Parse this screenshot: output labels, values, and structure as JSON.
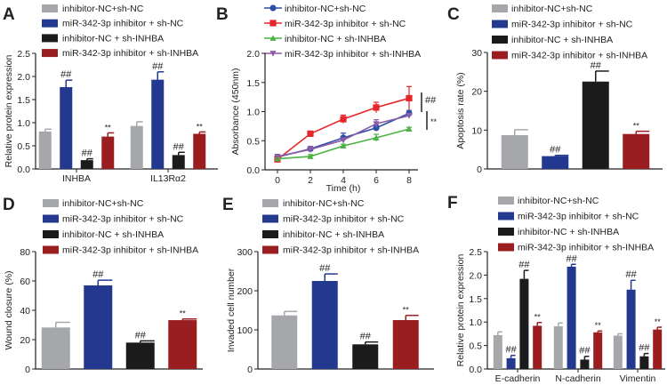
{
  "colors": {
    "gray": "#a6a7ab",
    "blue": "#22398f",
    "black": "#1b1b1b",
    "red": "#9a1d20",
    "line_blue": "#2d4ea6",
    "line_red": "#e6262b",
    "line_green": "#4db244",
    "line_purple": "#8b5ca8"
  },
  "legend_labels": [
    "inhibitor-NC+sh-NC",
    "miR-342-3p inhibitor + sh-NC",
    "inhibitor-NC + sh-INHBA",
    "miR-342-3p inhibitor + sh-INHBA"
  ],
  "chart_data": [
    {
      "panel": "A",
      "type": "bar",
      "ylabel": "Relative protein expression",
      "ylim": [
        0,
        2.5
      ],
      "yticks": [
        "0.0",
        "0.5",
        "1.0",
        "1.5",
        "2.0",
        "2.5"
      ],
      "categories": [
        "INHBA",
        "IL13Rα2"
      ],
      "series": [
        {
          "name": "inhibitor-NC+sh-NC",
          "values": [
            0.81,
            0.93
          ],
          "errors": [
            0.05,
            0.09
          ],
          "marks": [
            "",
            ""
          ]
        },
        {
          "name": "miR-342-3p inhibitor + sh-NC",
          "values": [
            1.77,
            1.93
          ],
          "errors": [
            0.15,
            0.17
          ],
          "marks": [
            "##",
            "##"
          ]
        },
        {
          "name": "inhibitor-NC + sh-INHBA",
          "values": [
            0.19,
            0.3
          ],
          "errors": [
            0.03,
            0.06
          ],
          "marks": [
            "##",
            "##"
          ]
        },
        {
          "name": "miR-342-3p inhibitor + sh-INHBA",
          "values": [
            0.7,
            0.76
          ],
          "errors": [
            0.08,
            0.04
          ],
          "marks": [
            "**",
            "**"
          ]
        }
      ]
    },
    {
      "panel": "B",
      "type": "line",
      "xlabel": "Time (h)",
      "ylabel": "Absorbance (450nm)",
      "ylim": [
        0,
        2.0
      ],
      "yticks": [
        "0.0",
        "0.5",
        "1.0",
        "1.5",
        "2.0"
      ],
      "x": [
        0,
        2,
        4,
        6,
        8
      ],
      "xticks": [
        "0",
        "2",
        "4",
        "6",
        "8"
      ],
      "series": [
        {
          "name": "inhibitor-NC+sh-NC",
          "values": [
            0.22,
            0.36,
            0.55,
            0.72,
            0.97
          ],
          "errors": [
            0.03,
            0.04,
            0.08,
            0.05,
            0.05
          ],
          "marker": "circle"
        },
        {
          "name": "miR-342-3p inhibitor + sh-NC",
          "values": [
            0.18,
            0.62,
            0.87,
            1.07,
            1.23
          ],
          "errors": [
            0.05,
            0.02,
            0.07,
            0.09,
            0.2
          ],
          "marker": "square"
        },
        {
          "name": "inhibitor-NC + sh-INHBA",
          "values": [
            0.19,
            0.23,
            0.41,
            0.55,
            0.7
          ],
          "errors": [
            0.02,
            0.03,
            0.03,
            0.06,
            0.03
          ],
          "marker": "triangle-up"
        },
        {
          "name": "miR-342-3p inhibitor + sh-INHBA",
          "values": [
            0.23,
            0.35,
            0.51,
            0.79,
            0.93
          ],
          "errors": [
            0.02,
            0.05,
            0.04,
            0.07,
            0.04
          ],
          "marker": "triangle-down"
        }
      ],
      "annotations": [
        "##",
        "**"
      ]
    },
    {
      "panel": "C",
      "type": "bar",
      "ylabel": "Apoptosis rate (%)",
      "ylim": [
        0,
        30
      ],
      "yticks": [
        "0",
        "10",
        "20",
        "30"
      ],
      "categories": [
        ""
      ],
      "series": [
        {
          "name": "inhibitor-NC+sh-NC",
          "values": [
            8.7
          ],
          "errors": [
            1.4
          ],
          "marks": [
            ""
          ]
        },
        {
          "name": "miR-342-3p inhibitor + sh-NC",
          "values": [
            3.3
          ],
          "errors": [
            0.2
          ],
          "marks": [
            "##"
          ]
        },
        {
          "name": "inhibitor-NC + sh-INHBA",
          "values": [
            22.5
          ],
          "errors": [
            2.7
          ],
          "marks": [
            "##"
          ]
        },
        {
          "name": "miR-342-3p inhibitor + sh-INHBA",
          "values": [
            9.0
          ],
          "errors": [
            0.7
          ],
          "marks": [
            "**"
          ]
        }
      ]
    },
    {
      "panel": "D",
      "type": "bar",
      "ylabel": "Wound closure (%)",
      "ylim": [
        0,
        80
      ],
      "yticks": [
        "0",
        "20",
        "40",
        "60",
        "80"
      ],
      "categories": [
        ""
      ],
      "series": [
        {
          "name": "inhibitor-NC+sh-NC",
          "values": [
            28.3
          ],
          "errors": [
            3.5
          ],
          "marks": [
            ""
          ]
        },
        {
          "name": "miR-342-3p inhibitor + sh-NC",
          "values": [
            57
          ],
          "errors": [
            3.5
          ],
          "marks": [
            "##"
          ]
        },
        {
          "name": "inhibitor-NC + sh-INHBA",
          "values": [
            18
          ],
          "errors": [
            1.2
          ],
          "marks": [
            "##"
          ]
        },
        {
          "name": "miR-342-3p inhibitor + sh-INHBA",
          "values": [
            33.3
          ],
          "errors": [
            0.8
          ],
          "marks": [
            "**"
          ]
        }
      ]
    },
    {
      "panel": "E",
      "type": "bar",
      "ylabel": "Invaded cell number",
      "ylim": [
        0,
        300
      ],
      "yticks": [
        "0",
        "100",
        "200",
        "300"
      ],
      "categories": [
        ""
      ],
      "series": [
        {
          "name": "inhibitor-NC+sh-NC",
          "values": [
            137
          ],
          "errors": [
            10
          ],
          "marks": [
            ""
          ]
        },
        {
          "name": "miR-342-3p inhibitor + sh-NC",
          "values": [
            225
          ],
          "errors": [
            18
          ],
          "marks": [
            "##"
          ]
        },
        {
          "name": "inhibitor-NC + sh-INHBA",
          "values": [
            63
          ],
          "errors": [
            6
          ],
          "marks": [
            "##"
          ]
        },
        {
          "name": "miR-342-3p inhibitor + sh-INHBA",
          "values": [
            125
          ],
          "errors": [
            12
          ],
          "marks": [
            "**"
          ]
        }
      ]
    },
    {
      "panel": "F",
      "type": "bar",
      "ylabel": "Relative protein expression",
      "ylim": [
        0,
        2.5
      ],
      "yticks": [
        "0.0",
        "0.5",
        "1.0",
        "1.5",
        "2.0",
        "2.5"
      ],
      "categories": [
        "E-cadherin",
        "N-cadherin",
        "Vimentin"
      ],
      "series": [
        {
          "name": "inhibitor-NC+sh-NC",
          "values": [
            0.72,
            0.91,
            0.71
          ],
          "errors": [
            0.07,
            0.07,
            0.04
          ],
          "marks": [
            "",
            "",
            ""
          ]
        },
        {
          "name": "miR-342-3p inhibitor + sh-NC",
          "values": [
            0.23,
            2.18,
            1.69
          ],
          "errors": [
            0.06,
            0.05,
            0.2
          ],
          "marks": [
            "##",
            "##",
            "##"
          ]
        },
        {
          "name": "inhibitor-NC + sh-INHBA",
          "values": [
            1.92,
            0.2,
            0.27
          ],
          "errors": [
            0.18,
            0.07,
            0.06
          ],
          "marks": [
            "##",
            "##",
            "##"
          ]
        },
        {
          "name": "miR-342-3p inhibitor + sh-INHBA",
          "values": [
            0.92,
            0.78,
            0.84
          ],
          "errors": [
            0.07,
            0.03,
            0.05
          ],
          "marks": [
            "**",
            "**",
            "**"
          ]
        }
      ]
    }
  ]
}
